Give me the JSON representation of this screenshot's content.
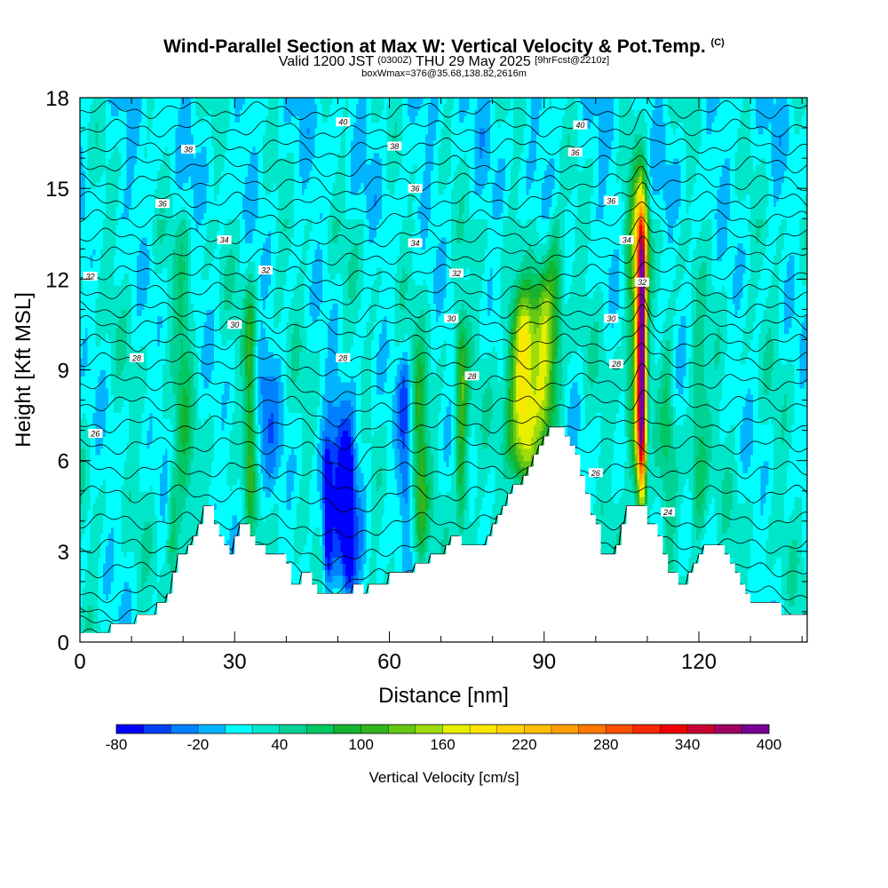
{
  "title": {
    "main": "Wind-Parallel Section at Max W: Vertical Velocity & Pot.Temp.",
    "copyright": "(C)",
    "valid_prefix": "Valid 1200 JST",
    "utc": "(0300Z)",
    "valid_date": "THU 29 May 2025",
    "forecast": "[9hrFcst@2210z]",
    "boxwmax": "boxWmax=376@35.68,138.82,2616m"
  },
  "chart_data": {
    "type": "heatmap",
    "xlabel": "Distance [nm]",
    "ylabel": "Height [Kft MSL]",
    "xlim": [
      0,
      141
    ],
    "ylim": [
      0,
      18
    ],
    "x_ticks": [
      0,
      30,
      60,
      90,
      120
    ],
    "y_ticks": [
      0,
      3,
      6,
      9,
      12,
      15,
      18
    ],
    "colorbar": {
      "label": "Vertical Velocity [cm/s]",
      "ticks": [
        "-80",
        "-20",
        "40",
        "100",
        "160",
        "220",
        "280",
        "340",
        "400"
      ],
      "levels": [
        -80,
        -60,
        -40,
        -20,
        0,
        20,
        40,
        60,
        80,
        100,
        120,
        140,
        160,
        180,
        200,
        220,
        240,
        260,
        280,
        300,
        320,
        340,
        360,
        380,
        400
      ],
      "colors": [
        "#0000ff",
        "#0040ff",
        "#0080ff",
        "#00b4ff",
        "#00ffff",
        "#00e6c8",
        "#00d296",
        "#00c864",
        "#14b432",
        "#32b41e",
        "#64c814",
        "#a0dc0a",
        "#e6f000",
        "#ffe600",
        "#ffd200",
        "#ffbe00",
        "#ffa000",
        "#ff7800",
        "#ff5000",
        "#ff2800",
        "#f00000",
        "#c80032",
        "#a00064",
        "#780096"
      ]
    },
    "terrain_profile": [
      [
        0,
        0.3
      ],
      [
        6,
        0.3
      ],
      [
        6,
        0.6
      ],
      [
        11,
        0.6
      ],
      [
        11,
        0.9
      ],
      [
        15,
        0.9
      ],
      [
        15,
        1.3
      ],
      [
        17,
        1.3
      ],
      [
        17,
        1.6
      ],
      [
        18,
        1.6
      ],
      [
        18,
        2.3
      ],
      [
        19,
        2.3
      ],
      [
        19,
        2.9
      ],
      [
        21,
        2.9
      ],
      [
        21,
        3.2
      ],
      [
        22,
        3.2
      ],
      [
        22,
        3.5
      ],
      [
        23,
        3.5
      ],
      [
        23,
        3.9
      ],
      [
        24,
        3.9
      ],
      [
        24,
        4.5
      ],
      [
        26,
        4.5
      ],
      [
        26,
        3.9
      ],
      [
        27,
        3.9
      ],
      [
        27,
        3.5
      ],
      [
        28,
        3.5
      ],
      [
        28,
        3.2
      ],
      [
        29,
        3.2
      ],
      [
        29,
        2.9
      ],
      [
        30,
        2.9
      ],
      [
        30,
        3.5
      ],
      [
        31,
        3.5
      ],
      [
        31,
        3.9
      ],
      [
        33,
        3.9
      ],
      [
        33,
        3.5
      ],
      [
        34,
        3.5
      ],
      [
        34,
        3.2
      ],
      [
        36,
        3.2
      ],
      [
        36,
        2.9
      ],
      [
        40,
        2.9
      ],
      [
        40,
        2.6
      ],
      [
        41,
        2.6
      ],
      [
        41,
        1.9
      ],
      [
        43,
        1.9
      ],
      [
        43,
        2.3
      ],
      [
        45,
        2.3
      ],
      [
        45,
        1.9
      ],
      [
        46,
        1.9
      ],
      [
        46,
        1.6
      ],
      [
        53,
        1.6
      ],
      [
        53,
        1.9
      ],
      [
        55,
        1.9
      ],
      [
        55,
        1.6
      ],
      [
        56,
        1.6
      ],
      [
        56,
        1.9
      ],
      [
        60,
        1.9
      ],
      [
        60,
        2.3
      ],
      [
        65,
        2.3
      ],
      [
        65,
        2.6
      ],
      [
        68,
        2.6
      ],
      [
        68,
        2.9
      ],
      [
        71,
        2.9
      ],
      [
        71,
        3.2
      ],
      [
        72,
        3.2
      ],
      [
        72,
        3.5
      ],
      [
        74,
        3.5
      ],
      [
        74,
        3.2
      ],
      [
        79,
        3.2
      ],
      [
        79,
        3.5
      ],
      [
        80,
        3.5
      ],
      [
        80,
        3.9
      ],
      [
        81,
        3.9
      ],
      [
        81,
        4.2
      ],
      [
        82,
        4.2
      ],
      [
        82,
        4.5
      ],
      [
        83,
        4.5
      ],
      [
        83,
        4.9
      ],
      [
        84,
        4.9
      ],
      [
        84,
        5.2
      ],
      [
        86,
        5.2
      ],
      [
        86,
        5.5
      ],
      [
        87,
        5.5
      ],
      [
        87,
        5.8
      ],
      [
        88,
        5.8
      ],
      [
        88,
        6.2
      ],
      [
        89,
        6.2
      ],
      [
        89,
        6.5
      ],
      [
        90,
        6.5
      ],
      [
        90,
        6.8
      ],
      [
        91,
        6.8
      ],
      [
        91,
        7.1
      ],
      [
        94,
        7.1
      ],
      [
        94,
        6.8
      ],
      [
        95,
        6.8
      ],
      [
        95,
        6.5
      ],
      [
        96,
        6.5
      ],
      [
        96,
        6.2
      ],
      [
        97,
        6.2
      ],
      [
        97,
        5.5
      ],
      [
        98,
        5.5
      ],
      [
        98,
        4.9
      ],
      [
        99,
        4.9
      ],
      [
        99,
        4.2
      ],
      [
        100,
        4.2
      ],
      [
        100,
        3.9
      ],
      [
        101,
        3.9
      ],
      [
        101,
        2.9
      ],
      [
        104,
        2.9
      ],
      [
        104,
        3.2
      ],
      [
        105,
        3.2
      ],
      [
        105,
        3.9
      ],
      [
        106,
        3.9
      ],
      [
        106,
        4.5
      ],
      [
        110,
        4.5
      ],
      [
        110,
        3.9
      ],
      [
        112,
        3.9
      ],
      [
        112,
        3.5
      ],
      [
        113,
        3.5
      ],
      [
        113,
        2.9
      ],
      [
        114,
        2.9
      ],
      [
        114,
        2.3
      ],
      [
        116,
        2.3
      ],
      [
        116,
        1.9
      ],
      [
        118,
        1.9
      ],
      [
        118,
        2.3
      ],
      [
        119,
        2.3
      ],
      [
        119,
        2.6
      ],
      [
        120,
        2.6
      ],
      [
        120,
        2.9
      ],
      [
        121,
        2.9
      ],
      [
        121,
        3.2
      ],
      [
        125,
        3.2
      ],
      [
        125,
        2.9
      ],
      [
        126,
        2.9
      ],
      [
        126,
        2.6
      ],
      [
        127,
        2.6
      ],
      [
        127,
        2.3
      ],
      [
        128,
        2.3
      ],
      [
        128,
        1.9
      ],
      [
        129,
        1.9
      ],
      [
        129,
        1.6
      ],
      [
        130,
        1.6
      ],
      [
        130,
        1.3
      ],
      [
        136,
        1.3
      ],
      [
        136,
        0.9
      ],
      [
        141,
        0.9
      ]
    ],
    "theta_contours": [
      {
        "label": "24",
        "base": 0.2
      },
      {
        "label": "24",
        "base": 0.6
      },
      {
        "label": "24",
        "base": 1.0
      },
      {
        "label": "26",
        "base": 1.6
      },
      {
        "label": "26",
        "base": 2.4
      },
      {
        "label": "26",
        "base": 3.2
      },
      {
        "label": "26",
        "base": 4.0
      },
      {
        "label": "28",
        "base": 4.9
      },
      {
        "label": "28",
        "base": 5.7
      },
      {
        "label": "28",
        "base": 6.5
      },
      {
        "label": "28",
        "base": 7.2
      },
      {
        "label": "28",
        "base": 7.9
      },
      {
        "label": "28",
        "base": 8.6
      },
      {
        "label": "30",
        "base": 9.3
      },
      {
        "label": "30",
        "base": 9.9
      },
      {
        "label": "30",
        "base": 10.5
      },
      {
        "label": "32",
        "base": 11.0
      },
      {
        "label": "32",
        "base": 11.6
      },
      {
        "label": "32",
        "base": 12.2
      },
      {
        "label": "34",
        "base": 12.8
      },
      {
        "label": "34",
        "base": 13.4
      },
      {
        "label": "34",
        "base": 14.0
      },
      {
        "label": "36",
        "base": 14.6
      },
      {
        "label": "36",
        "base": 15.2
      },
      {
        "label": "36",
        "base": 15.8
      },
      {
        "label": "38",
        "base": 16.4
      },
      {
        "label": "38",
        "base": 17.0
      },
      {
        "label": "40",
        "base": 17.6
      }
    ],
    "contour_labels": [
      {
        "text": "26",
        "x": 3,
        "y": 6.9
      },
      {
        "text": "28",
        "x": 11,
        "y": 9.4
      },
      {
        "text": "32",
        "x": 2,
        "y": 12.1
      },
      {
        "text": "36",
        "x": 16,
        "y": 14.5
      },
      {
        "text": "38",
        "x": 21,
        "y": 16.3
      },
      {
        "text": "34",
        "x": 28,
        "y": 13.3
      },
      {
        "text": "30",
        "x": 30,
        "y": 10.5
      },
      {
        "text": "32",
        "x": 36,
        "y": 12.3
      },
      {
        "text": "40",
        "x": 51,
        "y": 17.2
      },
      {
        "text": "38",
        "x": 61,
        "y": 16.4
      },
      {
        "text": "36",
        "x": 65,
        "y": 15.0
      },
      {
        "text": "34",
        "x": 65,
        "y": 13.2
      },
      {
        "text": "28",
        "x": 51,
        "y": 9.4
      },
      {
        "text": "32",
        "x": 73,
        "y": 12.2
      },
      {
        "text": "30",
        "x": 72,
        "y": 10.7
      },
      {
        "text": "28",
        "x": 76,
        "y": 8.8
      },
      {
        "text": "40",
        "x": 97,
        "y": 17.1
      },
      {
        "text": "36",
        "x": 96,
        "y": 16.2
      },
      {
        "text": "36",
        "x": 103,
        "y": 14.6
      },
      {
        "text": "34",
        "x": 106,
        "y": 13.3
      },
      {
        "text": "30",
        "x": 103,
        "y": 10.7
      },
      {
        "text": "28",
        "x": 104,
        "y": 9.2
      },
      {
        "text": "32",
        "x": 109,
        "y": 11.9
      },
      {
        "text": "26",
        "x": 100,
        "y": 5.6
      },
      {
        "text": "24",
        "x": 114,
        "y": 4.3
      }
    ],
    "w_features": [
      {
        "x": 109,
        "ybot": 4.6,
        "ytop": 14.5,
        "w": 1.2,
        "peak": 376
      },
      {
        "x": 108,
        "ybot": 5.0,
        "ytop": 16.5,
        "w": 2.2,
        "peak": 120
      },
      {
        "x": 86,
        "ybot": 5.3,
        "ytop": 11.5,
        "w": 3.5,
        "peak": 190
      },
      {
        "x": 90,
        "ybot": 6.5,
        "ytop": 12.5,
        "w": 2.0,
        "peak": 110
      },
      {
        "x": 92,
        "ybot": 7.0,
        "ytop": 14.5,
        "w": 2.0,
        "peak": 80
      },
      {
        "x": 74,
        "ybot": 3.5,
        "ytop": 11.0,
        "w": 1.4,
        "peak": 110
      },
      {
        "x": 66,
        "ybot": 2.7,
        "ytop": 9.5,
        "w": 1.6,
        "peak": 100
      },
      {
        "x": 33,
        "ybot": 3.8,
        "ytop": 11.8,
        "w": 1.3,
        "peak": 100
      },
      {
        "x": 20,
        "ybot": 3.0,
        "ytop": 13.5,
        "w": 2.0,
        "peak": 60
      },
      {
        "x": 18,
        "ybot": 2.3,
        "ytop": 6.0,
        "w": 1.2,
        "peak": 60
      },
      {
        "x": 120,
        "ybot": 3.0,
        "ytop": 10.0,
        "w": 2.0,
        "peak": 70
      },
      {
        "x": 114,
        "ybot": 3.0,
        "ytop": 11.0,
        "w": 1.5,
        "peak": 50
      },
      {
        "x": 51,
        "ybot": 1.5,
        "ytop": 8.5,
        "w": 4.5,
        "peak": -55
      },
      {
        "x": 48,
        "ybot": 2.0,
        "ytop": 6.5,
        "w": 1.0,
        "peak": -75
      },
      {
        "x": 52,
        "ybot": 2.0,
        "ytop": 6.5,
        "w": 1.0,
        "peak": -75
      },
      {
        "x": 110,
        "ybot": 5.0,
        "ytop": 12.0,
        "w": 0.8,
        "peak": -65
      },
      {
        "x": 36,
        "ybot": 4.5,
        "ytop": 10.0,
        "w": 3.0,
        "peak": -25
      },
      {
        "x": 63,
        "ybot": 4.0,
        "ytop": 9.5,
        "w": 1.5,
        "peak": -40
      }
    ]
  }
}
